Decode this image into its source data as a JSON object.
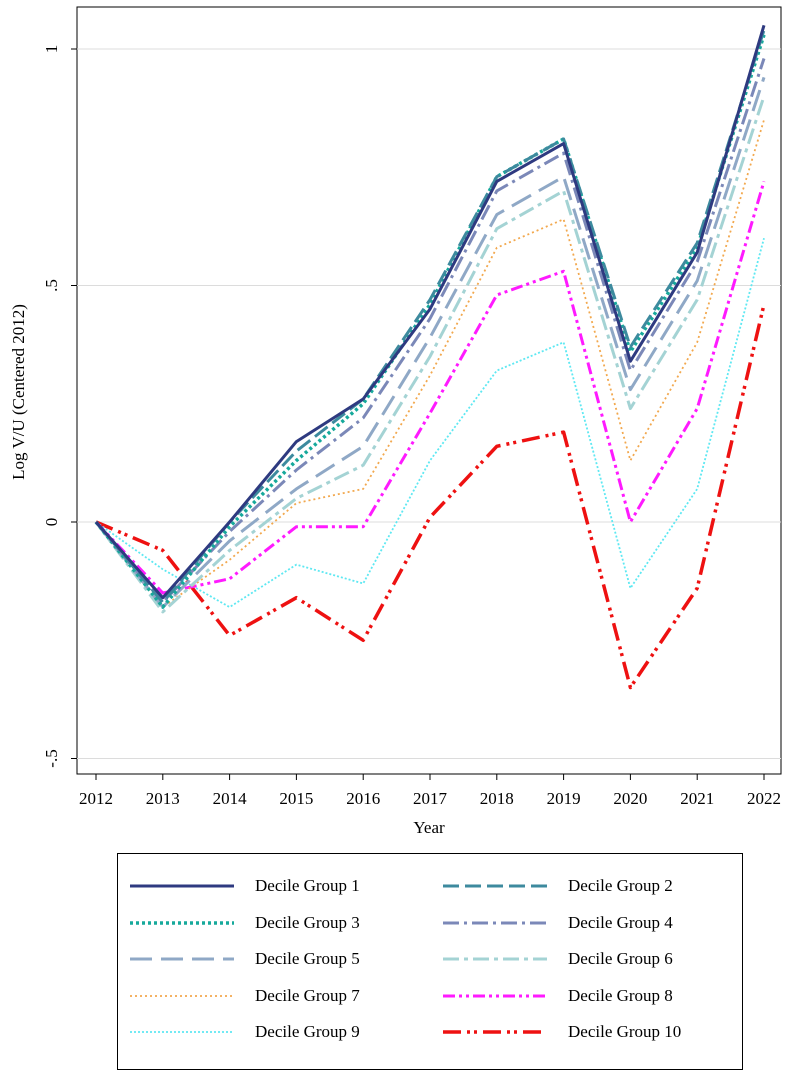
{
  "chart_data": {
    "type": "line",
    "title": "",
    "xlabel": "Year",
    "ylabel": "Log V/U (Centered 2012)",
    "x": [
      2012,
      2013,
      2014,
      2015,
      2016,
      2017,
      2018,
      2019,
      2020,
      2021,
      2022
    ],
    "xticks": [
      "2012",
      "2013",
      "2014",
      "2015",
      "2016",
      "2017",
      "2018",
      "2019",
      "2020",
      "2021",
      "2022"
    ],
    "ylim": [
      -0.53,
      1.09
    ],
    "yticks": [
      {
        "value": -0.5,
        "label": "-.5"
      },
      {
        "value": 0,
        "label": "0"
      },
      {
        "value": 0.5,
        "label": ".5"
      },
      {
        "value": 1,
        "label": "1"
      }
    ],
    "grid": true,
    "legend_position": "bottom",
    "series": [
      {
        "name": "Decile Group 1",
        "color": "#2e3a80",
        "dash": "none",
        "width": 3,
        "values": [
          0,
          -0.16,
          0.0,
          0.17,
          0.26,
          0.45,
          0.72,
          0.8,
          0.34,
          0.57,
          1.05
        ]
      },
      {
        "name": "Decile Group 2",
        "color": "#3d8a9e",
        "dash": "16,6",
        "width": 3,
        "values": [
          0,
          -0.17,
          0.0,
          0.15,
          0.26,
          0.47,
          0.73,
          0.81,
          0.37,
          0.59,
          1.04
        ]
      },
      {
        "name": "Decile Group 3",
        "color": "#16a99b",
        "dash": "3,3",
        "width": 3.5,
        "values": [
          0,
          -0.18,
          -0.01,
          0.13,
          0.25,
          0.46,
          0.73,
          0.81,
          0.36,
          0.58,
          1.03
        ]
      },
      {
        "name": "Decile Group 4",
        "color": "#7b88b8",
        "dash": "16,5,3,5",
        "width": 3,
        "values": [
          0,
          -0.17,
          -0.02,
          0.11,
          0.22,
          0.43,
          0.7,
          0.78,
          0.32,
          0.55,
          0.98
        ]
      },
      {
        "name": "Decile Group 5",
        "color": "#8fa8c6",
        "dash": "22,9",
        "width": 3,
        "values": [
          0,
          -0.18,
          -0.04,
          0.07,
          0.16,
          0.39,
          0.65,
          0.73,
          0.28,
          0.51,
          0.94
        ]
      },
      {
        "name": "Decile Group 6",
        "color": "#a4d3d4",
        "dash": "16,5,4,5",
        "width": 3,
        "values": [
          0,
          -0.19,
          -0.06,
          0.05,
          0.12,
          0.35,
          0.62,
          0.7,
          0.24,
          0.47,
          0.9
        ]
      },
      {
        "name": "Decile Group 7",
        "color": "#f2a84e",
        "dash": "2,3",
        "width": 1.8,
        "values": [
          0,
          -0.18,
          -0.08,
          0.04,
          0.07,
          0.31,
          0.58,
          0.64,
          0.13,
          0.38,
          0.85
        ]
      },
      {
        "name": "Decile Group 8",
        "color": "#ff1aff",
        "dash": "12,4,3,4,3,4",
        "width": 3,
        "values": [
          0,
          -0.15,
          -0.12,
          -0.01,
          -0.01,
          0.23,
          0.48,
          0.53,
          0.0,
          0.24,
          0.72
        ]
      },
      {
        "name": "Decile Group 9",
        "color": "#5ee8f2",
        "dash": "2,2",
        "width": 1.8,
        "values": [
          0,
          -0.1,
          -0.18,
          -0.09,
          -0.13,
          0.13,
          0.32,
          0.38,
          -0.14,
          0.07,
          0.6
        ]
      },
      {
        "name": "Decile Group 10",
        "color": "#ee1111",
        "dash": "18,6,3,4,3,6",
        "width": 3.5,
        "values": [
          0,
          -0.06,
          -0.24,
          -0.16,
          -0.25,
          0.01,
          0.16,
          0.19,
          -0.35,
          -0.14,
          0.46
        ]
      }
    ]
  }
}
